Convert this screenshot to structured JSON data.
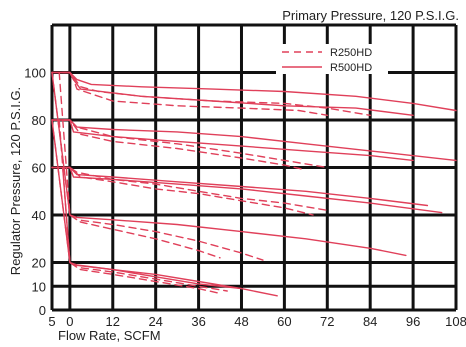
{
  "chart_data": {
    "type": "line",
    "title": "Primary Pressure, 120 P.S.I.G.",
    "xlabel": "Flow Rate, SCFM",
    "ylabel": "Regulator Pressure, 120 P.S.I.G.",
    "xlim": [
      -5,
      108
    ],
    "ylim": [
      0,
      120
    ],
    "x_ticks": [
      -5,
      0,
      12,
      24,
      36,
      48,
      60,
      72,
      84,
      96,
      108
    ],
    "x_tick_labels": [
      "5",
      "0",
      "12",
      "24",
      "36",
      "48",
      "60",
      "72",
      "84",
      "96",
      "108"
    ],
    "y_ticks": [
      0,
      10,
      20,
      40,
      60,
      80,
      100
    ],
    "y_tick_labels": [
      "0",
      "10",
      "20",
      "40",
      "60",
      "80",
      "100"
    ],
    "grid": true,
    "legend": "top-right",
    "colors": {
      "line": "#e0405a",
      "grid": "#111111",
      "text": "#222222"
    },
    "legend_entries": [
      {
        "label": "R250HD",
        "style": "dashed"
      },
      {
        "label": "R500HD",
        "style": "solid"
      }
    ],
    "series": [
      {
        "group": "R250HD",
        "style": "dashed",
        "setpoint": 100,
        "x": [
          -5,
          0,
          3,
          8,
          20,
          40,
          60,
          72,
          80,
          84
        ],
        "y": [
          100,
          100,
          94,
          92,
          90,
          88,
          87,
          85,
          83,
          82
        ]
      },
      {
        "group": "R250HD",
        "style": "dashed",
        "setpoint": 100,
        "x": [
          -3,
          0,
          1,
          2,
          12,
          30,
          48,
          64,
          72
        ],
        "y": [
          100,
          100,
          97,
          93,
          88,
          86,
          85,
          84,
          82
        ]
      },
      {
        "group": "R500HD",
        "style": "solid",
        "setpoint": 100,
        "x": [
          -5,
          0,
          2,
          6,
          20,
          40,
          60,
          80,
          96,
          108
        ],
        "y": [
          100,
          100,
          97,
          95,
          94,
          93,
          92,
          90,
          87,
          84
        ]
      },
      {
        "group": "R500HD",
        "style": "solid",
        "setpoint": 100,
        "x": [
          -2,
          0,
          1,
          3,
          20,
          40,
          60,
          80,
          96
        ],
        "y": [
          100,
          100,
          97,
          93,
          90,
          88,
          86,
          85,
          82
        ]
      },
      {
        "group": "R250HD",
        "style": "dashed",
        "setpoint": 80,
        "x": [
          -5,
          0,
          3,
          12,
          30,
          48,
          60,
          66
        ],
        "y": [
          80,
          80,
          74,
          71,
          68,
          64,
          61,
          59
        ]
      },
      {
        "group": "R250HD",
        "style": "dashed",
        "setpoint": 80,
        "x": [
          -3,
          0,
          2,
          12,
          30,
          48,
          60,
          72
        ],
        "y": [
          80,
          80,
          77,
          73,
          70,
          66,
          63,
          60
        ]
      },
      {
        "group": "R500HD",
        "style": "solid",
        "setpoint": 80,
        "x": [
          -5,
          0,
          2,
          12,
          30,
          48,
          66,
          84,
          108
        ],
        "y": [
          80,
          80,
          77,
          76,
          75,
          73,
          70,
          67,
          63
        ]
      },
      {
        "group": "R500HD",
        "style": "solid",
        "setpoint": 80,
        "x": [
          -2,
          0,
          1,
          12,
          30,
          48,
          66,
          84,
          96
        ],
        "y": [
          80,
          80,
          75,
          73,
          71,
          69,
          67,
          65,
          63
        ]
      },
      {
        "group": "R250HD",
        "style": "dashed",
        "setpoint": 60,
        "x": [
          -5,
          0,
          3,
          12,
          24,
          36,
          48,
          60,
          68
        ],
        "y": [
          60,
          60,
          56,
          54,
          51,
          49,
          46,
          43,
          40
        ]
      },
      {
        "group": "R250HD",
        "style": "dashed",
        "setpoint": 60,
        "x": [
          -3,
          0,
          2,
          12,
          24,
          36,
          48,
          60,
          72
        ],
        "y": [
          60,
          60,
          58,
          55,
          53,
          50,
          47,
          45,
          42
        ]
      },
      {
        "group": "R500HD",
        "style": "solid",
        "setpoint": 60,
        "x": [
          -5,
          0,
          2,
          12,
          30,
          48,
          66,
          84,
          100
        ],
        "y": [
          60,
          60,
          57,
          56,
          54,
          52,
          50,
          47,
          44
        ]
      },
      {
        "group": "R500HD",
        "style": "solid",
        "setpoint": 60,
        "x": [
          -2,
          0,
          1,
          12,
          30,
          48,
          66,
          84,
          104
        ],
        "y": [
          60,
          60,
          56,
          55,
          53,
          51,
          48,
          45,
          41
        ]
      },
      {
        "group": "R250HD",
        "style": "dashed",
        "setpoint": 40,
        "x": [
          -5,
          0,
          3,
          12,
          24,
          36,
          42
        ],
        "y": [
          100,
          40,
          37,
          34,
          30,
          25,
          22
        ]
      },
      {
        "group": "R250HD",
        "style": "dashed",
        "setpoint": 40,
        "x": [
          -3,
          0,
          2,
          12,
          24,
          36,
          48,
          54
        ],
        "y": [
          100,
          40,
          38,
          36,
          33,
          29,
          24,
          21
        ]
      },
      {
        "group": "R500HD",
        "style": "solid",
        "setpoint": 40,
        "x": [
          -5,
          0,
          2,
          12,
          30,
          48,
          66,
          84,
          94
        ],
        "y": [
          100,
          40,
          39,
          38,
          36,
          33,
          30,
          26,
          23
        ]
      },
      {
        "group": "R250HD",
        "style": "dashed",
        "setpoint": 20,
        "x": [
          -5,
          0,
          3,
          12,
          24,
          36,
          42
        ],
        "y": [
          80,
          20,
          17,
          15,
          12,
          9,
          7
        ]
      },
      {
        "group": "R250HD",
        "style": "dashed",
        "setpoint": 20,
        "x": [
          -3,
          0,
          2,
          12,
          24,
          36,
          44
        ],
        "y": [
          80,
          20,
          18,
          16,
          13,
          10,
          8
        ]
      },
      {
        "group": "R500HD",
        "style": "solid",
        "setpoint": 20,
        "x": [
          -5,
          0,
          2,
          12,
          24,
          36,
          48,
          58
        ],
        "y": [
          80,
          20,
          19,
          17,
          15,
          12,
          9,
          6
        ]
      },
      {
        "group": "R500HD",
        "style": "solid",
        "setpoint": 20,
        "x": [
          -2,
          0,
          1,
          12,
          24,
          36,
          48
        ],
        "y": [
          60,
          20,
          19,
          17,
          14,
          11,
          9
        ]
      }
    ]
  }
}
